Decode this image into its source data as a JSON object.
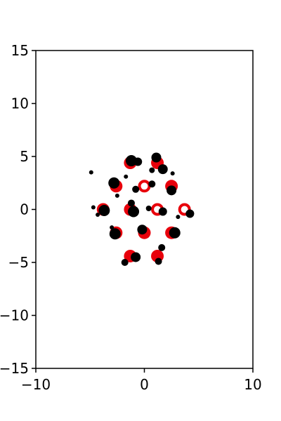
{
  "chart_data": {
    "type": "scatter",
    "title": "",
    "xlabel": "",
    "ylabel": "",
    "xlim": [
      -10,
      10
    ],
    "ylim": [
      -15,
      15
    ],
    "grid": false,
    "x_ticks": [
      -10,
      0,
      10
    ],
    "x_tick_labels": [
      "−10",
      "0",
      "10"
    ],
    "y_ticks": [
      -15,
      -10,
      -5,
      0,
      5,
      10,
      15
    ],
    "y_tick_labels": [
      "−15",
      "−10",
      "−5",
      "0",
      "5",
      "10",
      "15"
    ],
    "colors": {
      "red": "#e8000b",
      "black": "#000000",
      "axes": "#000000"
    },
    "series": [
      {
        "style": "red-filled",
        "points": [
          {
            "x": -1.3,
            "y": 4.4,
            "r": 9
          },
          {
            "x": 1.2,
            "y": 4.4,
            "r": 9
          },
          {
            "x": -2.6,
            "y": 2.2,
            "r": 9
          },
          {
            "x": 2.5,
            "y": 2.2,
            "r": 9
          },
          {
            "x": -3.8,
            "y": 0.0,
            "r": 9
          },
          {
            "x": -1.3,
            "y": 0.0,
            "r": 9
          },
          {
            "x": -2.6,
            "y": -2.2,
            "r": 9
          },
          {
            "x": 0.0,
            "y": -2.2,
            "r": 9
          },
          {
            "x": 2.5,
            "y": -2.2,
            "r": 9
          },
          {
            "x": -1.3,
            "y": -4.4,
            "r": 9
          },
          {
            "x": 1.2,
            "y": -4.4,
            "r": 9
          }
        ]
      },
      {
        "style": "red-ring",
        "points": [
          {
            "x": 0.0,
            "y": 2.2,
            "r": 7
          },
          {
            "x": 1.2,
            "y": 0.0,
            "r": 7
          },
          {
            "x": 3.7,
            "y": 0.0,
            "r": 7
          }
        ]
      },
      {
        "style": "black",
        "points": [
          {
            "x": -1.2,
            "y": 4.6,
            "r": 8
          },
          {
            "x": -0.6,
            "y": 4.5,
            "r": 6
          },
          {
            "x": 1.1,
            "y": 4.9,
            "r": 7
          },
          {
            "x": 1.7,
            "y": 3.8,
            "r": 7
          },
          {
            "x": 0.7,
            "y": 3.7,
            "r": 4
          },
          {
            "x": 2.6,
            "y": 3.4,
            "r": 3
          },
          {
            "x": -1.7,
            "y": 3.1,
            "r": 3
          },
          {
            "x": -2.8,
            "y": 2.5,
            "r": 8
          },
          {
            "x": -4.9,
            "y": 3.5,
            "r": 3
          },
          {
            "x": -0.8,
            "y": 1.9,
            "r": 5
          },
          {
            "x": 0.7,
            "y": 2.4,
            "r": 5
          },
          {
            "x": 2.5,
            "y": 1.8,
            "r": 7
          },
          {
            "x": -2.5,
            "y": 1.3,
            "r": 3
          },
          {
            "x": -1.2,
            "y": 0.6,
            "r": 5
          },
          {
            "x": -3.7,
            "y": -0.1,
            "r": 8
          },
          {
            "x": -4.7,
            "y": 0.2,
            "r": 3
          },
          {
            "x": -4.3,
            "y": -0.5,
            "r": 3
          },
          {
            "x": -1.0,
            "y": -0.2,
            "r": 8
          },
          {
            "x": 0.4,
            "y": 0.1,
            "r": 4
          },
          {
            "x": 1.7,
            "y": -0.2,
            "r": 6
          },
          {
            "x": 4.2,
            "y": -0.4,
            "r": 6
          },
          {
            "x": 3.1,
            "y": -0.7,
            "r": 3
          },
          {
            "x": -3.0,
            "y": -1.7,
            "r": 3
          },
          {
            "x": -0.2,
            "y": -1.9,
            "r": 7
          },
          {
            "x": -2.7,
            "y": -2.3,
            "r": 8
          },
          {
            "x": 2.8,
            "y": -2.2,
            "r": 8
          },
          {
            "x": 1.6,
            "y": -3.6,
            "r": 5
          },
          {
            "x": -0.8,
            "y": -4.5,
            "r": 7
          },
          {
            "x": -1.8,
            "y": -5.0,
            "r": 5
          },
          {
            "x": 1.3,
            "y": -4.9,
            "r": 5
          }
        ]
      }
    ]
  }
}
